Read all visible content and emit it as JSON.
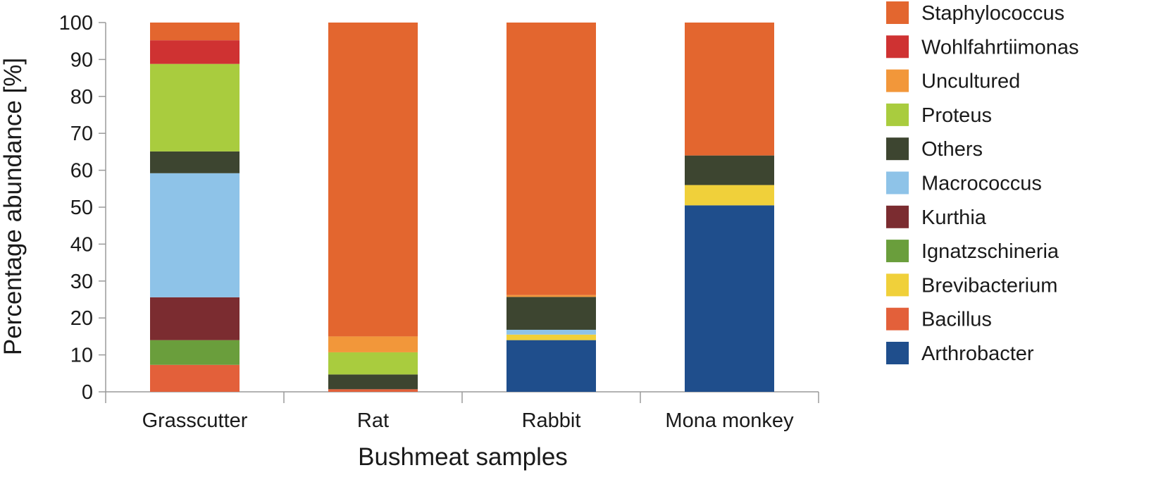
{
  "chart_data": {
    "type": "bar",
    "stacked": true,
    "xlabel": "Bushmeat samples",
    "ylabel": "Percentage abundance [%]",
    "ylim": [
      0,
      100
    ],
    "yticks": [
      0,
      10,
      20,
      30,
      40,
      50,
      60,
      70,
      80,
      90,
      100
    ],
    "grid": false,
    "legend_position": "right",
    "categories": [
      "Grasscutter",
      "Rat",
      "Rabbit",
      "Mona monkey"
    ],
    "series": [
      {
        "name": "Arthrobacter",
        "color": "#1f4e8c",
        "values": [
          0,
          0,
          14,
          50.5
        ]
      },
      {
        "name": "Bacillus",
        "color": "#e3603a",
        "values": [
          7.3,
          0.7,
          0,
          0
        ]
      },
      {
        "name": "Brevibacterium",
        "color": "#f0d03a",
        "values": [
          0,
          0,
          1.5,
          5.5
        ]
      },
      {
        "name": "Ignatzschineria",
        "color": "#6a9e3c",
        "values": [
          6.7,
          0,
          0,
          0
        ]
      },
      {
        "name": "Kurthia",
        "color": "#7b2c30",
        "values": [
          11.6,
          0,
          0,
          0
        ]
      },
      {
        "name": "Macrococcus",
        "color": "#8ec3e8",
        "values": [
          33.6,
          0,
          1.3,
          0
        ]
      },
      {
        "name": "Others",
        "color": "#3d4530",
        "values": [
          5.9,
          4.0,
          8.9,
          8.0
        ]
      },
      {
        "name": "Proteus",
        "color": "#a9cc3e",
        "values": [
          23.7,
          6.0,
          0,
          0
        ]
      },
      {
        "name": "Uncultured",
        "color": "#f2973a",
        "values": [
          0,
          4.3,
          0.5,
          0
        ]
      },
      {
        "name": "Wohlfahrtiimonas",
        "color": "#cf3232",
        "values": [
          6.4,
          0,
          0,
          0
        ]
      },
      {
        "name": "Staphylococcus",
        "color": "#e3662f",
        "values": [
          4.8,
          85.0,
          73.8,
          36.0
        ]
      }
    ]
  }
}
